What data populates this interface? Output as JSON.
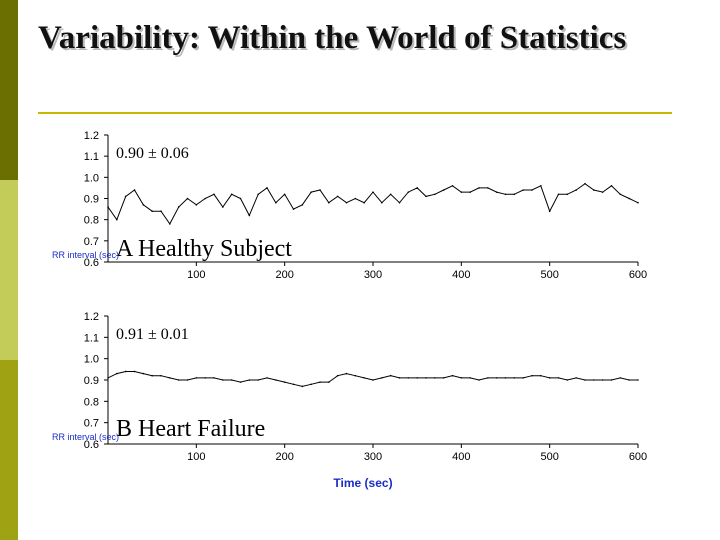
{
  "slide": {
    "title": "Variability: Within the World of Statistics",
    "colors": {
      "sidebar_dark": "#6b6e00",
      "sidebar_light": "#c4cc59",
      "sidebar_mid": "#9fa313",
      "title_rule": "#c8b800",
      "axis_label": "#1a2cc8"
    }
  },
  "chart_data": [
    {
      "type": "line",
      "panel_label": "A",
      "annotation": "Healthy Subject",
      "stat_label": "0.90 ± 0.06",
      "mean": 0.9,
      "sd": 0.06,
      "xlim": [
        0,
        600
      ],
      "ylim": [
        0.6,
        1.2
      ],
      "xticks": [
        "100",
        "200",
        "300",
        "400",
        "500",
        "600"
      ],
      "yticks": [
        "0.6",
        "0.7",
        "0.8",
        "0.9",
        "1.0",
        "1.1",
        "1.2"
      ],
      "ylabel": "RR interval (sec)",
      "series": [
        {
          "x": [
            0,
            10,
            20,
            30,
            40,
            50,
            60,
            70,
            80,
            90,
            100,
            110,
            120,
            130,
            140,
            150,
            160,
            170,
            180,
            190,
            200,
            210,
            220,
            230,
            240,
            250,
            260,
            270,
            280,
            290,
            300,
            310,
            320,
            330,
            340,
            350,
            360,
            370,
            380,
            390,
            400,
            410,
            420,
            430,
            440,
            450,
            460,
            470,
            480,
            490,
            500,
            510,
            520,
            530,
            540,
            550,
            560,
            570,
            580,
            590,
            600
          ],
          "y": [
            0.86,
            0.8,
            0.91,
            0.94,
            0.87,
            0.84,
            0.84,
            0.78,
            0.86,
            0.9,
            0.87,
            0.9,
            0.92,
            0.86,
            0.92,
            0.9,
            0.82,
            0.92,
            0.95,
            0.88,
            0.92,
            0.85,
            0.87,
            0.93,
            0.94,
            0.88,
            0.91,
            0.88,
            0.9,
            0.88,
            0.93,
            0.88,
            0.92,
            0.88,
            0.93,
            0.95,
            0.91,
            0.92,
            0.94,
            0.96,
            0.93,
            0.93,
            0.95,
            0.95,
            0.93,
            0.92,
            0.92,
            0.94,
            0.94,
            0.96,
            0.84,
            0.92,
            0.92,
            0.94,
            0.97,
            0.94,
            0.93,
            0.96,
            0.92,
            0.9,
            0.88
          ]
        }
      ]
    },
    {
      "type": "line",
      "panel_label": "B",
      "annotation": "Heart Failure",
      "stat_label": "0.91 ± 0.01",
      "mean": 0.91,
      "sd": 0.01,
      "xlim": [
        0,
        600
      ],
      "ylim": [
        0.6,
        1.2
      ],
      "xticks": [
        "100",
        "200",
        "300",
        "400",
        "500",
        "600"
      ],
      "yticks": [
        "0.6",
        "0.7",
        "0.8",
        "0.9",
        "1.0",
        "1.1",
        "1.2"
      ],
      "ylabel": "RR interval (sec)",
      "xlabel": "Time (sec)",
      "series": [
        {
          "x": [
            0,
            10,
            20,
            30,
            40,
            50,
            60,
            70,
            80,
            90,
            100,
            110,
            120,
            130,
            140,
            150,
            160,
            170,
            180,
            190,
            200,
            210,
            220,
            230,
            240,
            250,
            260,
            270,
            280,
            290,
            300,
            310,
            320,
            330,
            340,
            350,
            360,
            370,
            380,
            390,
            400,
            410,
            420,
            430,
            440,
            450,
            460,
            470,
            480,
            490,
            500,
            510,
            520,
            530,
            540,
            550,
            560,
            570,
            580,
            590,
            600
          ],
          "y": [
            0.91,
            0.93,
            0.94,
            0.94,
            0.93,
            0.92,
            0.92,
            0.91,
            0.9,
            0.9,
            0.91,
            0.91,
            0.91,
            0.9,
            0.9,
            0.89,
            0.9,
            0.9,
            0.91,
            0.9,
            0.89,
            0.88,
            0.87,
            0.88,
            0.89,
            0.89,
            0.92,
            0.93,
            0.92,
            0.91,
            0.9,
            0.91,
            0.92,
            0.91,
            0.91,
            0.91,
            0.91,
            0.91,
            0.91,
            0.92,
            0.91,
            0.91,
            0.9,
            0.91,
            0.91,
            0.91,
            0.91,
            0.91,
            0.92,
            0.92,
            0.91,
            0.91,
            0.9,
            0.91,
            0.9,
            0.9,
            0.9,
            0.9,
            0.91,
            0.9,
            0.9
          ]
        }
      ]
    }
  ]
}
